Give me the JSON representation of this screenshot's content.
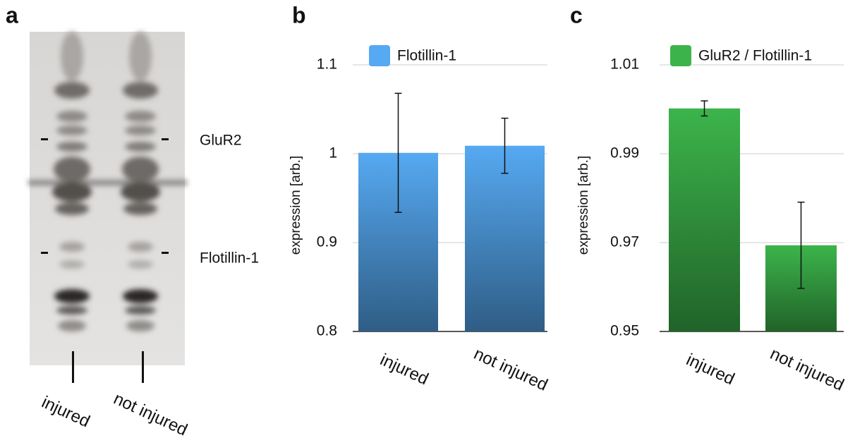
{
  "panel_labels": [
    "a",
    "b",
    "c"
  ],
  "blot": {
    "bands": [
      "GluR2",
      "Flotillin-1"
    ],
    "lanes": [
      "injured",
      "not injured"
    ]
  },
  "chart_data": [
    {
      "type": "bar",
      "y_label": "expression [arb.]",
      "categories": [
        "injured",
        "not injured"
      ],
      "series": [
        {
          "name": "Flotillin-1",
          "color": "#56a9f2",
          "values": [
            1.001,
            1.009
          ],
          "errors": [
            0.067,
            0.031
          ]
        }
      ],
      "ylim": [
        0.8,
        1.1
      ],
      "yticks": [
        0.8,
        0.9,
        1,
        1.1
      ],
      "grid": true
    },
    {
      "type": "bar",
      "y_label": "expression [arb.]",
      "categories": [
        "injured",
        "not injured"
      ],
      "series": [
        {
          "name": "GluR2 / Flotillin-1",
          "color": "#3cb44b",
          "values": [
            1.0002,
            0.9694
          ],
          "errors": [
            0.0017,
            0.0097
          ]
        }
      ],
      "ylim": [
        0.95,
        1.01
      ],
      "yticks": [
        0.95,
        0.97,
        0.99,
        1.01
      ],
      "grid": true
    }
  ]
}
